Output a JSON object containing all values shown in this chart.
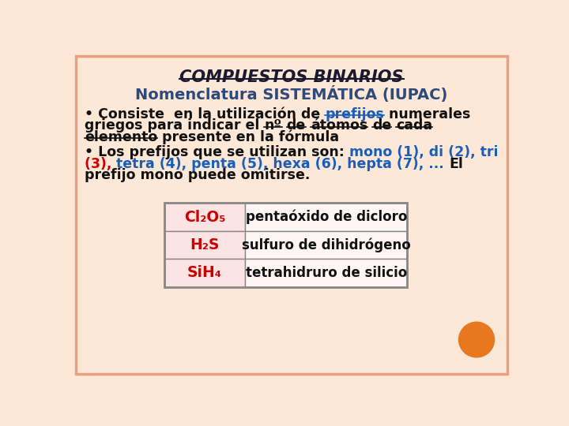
{
  "bg_color": "#fde8d8",
  "border_color": "#e8a080",
  "title": "COMPUESTOS BINARIOS",
  "subtitle": "Nomenclatura SISTEMÁTICA (IUPAC)",
  "subtitle_color": "#2e4a7a",
  "table_row_bg": "#fce4e4",
  "table_border": "#888888",
  "table_data": [
    [
      "Cl₂O₅",
      "pentaóxido de dicloro"
    ],
    [
      "H₂S",
      "sulfuro de dihidrógeno"
    ],
    [
      "SiH₄",
      "tetrahidruro de silicio"
    ]
  ],
  "red_color": "#cc0000",
  "blue_color": "#1a5eb8",
  "black_color": "#111111",
  "orange_circle_color": "#e87820"
}
